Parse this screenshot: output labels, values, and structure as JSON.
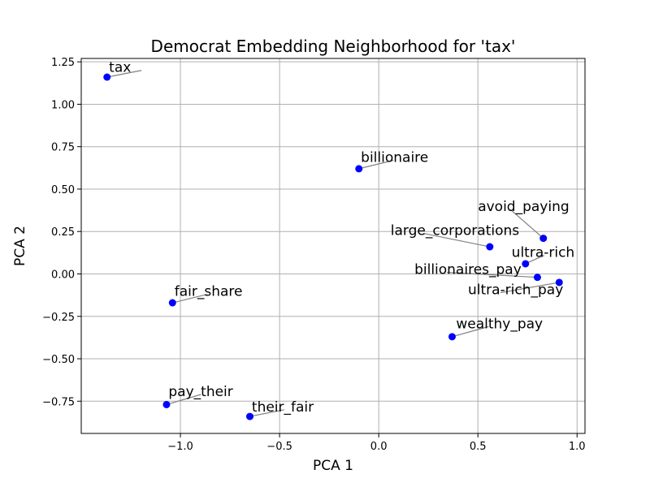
{
  "chart_data": {
    "type": "scatter",
    "title": "Democrat Embedding Neighborhood for 'tax'",
    "xlabel": "PCA 1",
    "ylabel": "PCA 2",
    "xlim": [
      -1.5,
      1.04
    ],
    "ylim": [
      -0.94,
      1.27
    ],
    "xticks": [
      -1.0,
      -0.5,
      0.0,
      0.5,
      1.0
    ],
    "xtick_labels": [
      "−1.0",
      "−0.5",
      "0.0",
      "0.5",
      "1.0"
    ],
    "yticks": [
      -0.75,
      -0.5,
      -0.25,
      0.0,
      0.25,
      0.5,
      0.75,
      1.0,
      1.25
    ],
    "ytick_labels": [
      "−0.75",
      "−0.50",
      "−0.25",
      "0.00",
      "0.25",
      "0.50",
      "0.75",
      "1.00",
      "1.25"
    ],
    "grid": true,
    "marker_color": "#0000ff",
    "points": [
      {
        "label": "tax",
        "x": -1.37,
        "y": 1.16,
        "label_x": -1.36,
        "label_y": 1.19
      },
      {
        "label": "billionaire",
        "x": -0.1,
        "y": 0.62,
        "label_x": -0.09,
        "label_y": 0.66
      },
      {
        "label": "avoid_paying",
        "x": 0.83,
        "y": 0.21,
        "label_x": 0.5,
        "label_y": 0.37
      },
      {
        "label": "large_corporations",
        "x": 0.56,
        "y": 0.16,
        "label_x": 0.06,
        "label_y": 0.23
      },
      {
        "label": "ultra-rich",
        "x": 0.74,
        "y": 0.06,
        "label_x": 0.67,
        "label_y": 0.1
      },
      {
        "label": "billionaires_pay",
        "x": 0.8,
        "y": -0.02,
        "label_x": 0.18,
        "label_y": -0.0
      },
      {
        "label": "ultra-rich_pay",
        "x": 0.91,
        "y": -0.05,
        "label_x": 0.45,
        "label_y": -0.12
      },
      {
        "label": "fair_share",
        "x": -1.04,
        "y": -0.17,
        "label_x": -1.03,
        "label_y": -0.13
      },
      {
        "label": "wealthy_pay",
        "x": 0.37,
        "y": -0.37,
        "label_x": 0.39,
        "label_y": -0.32
      },
      {
        "label": "pay_their",
        "x": -1.07,
        "y": -0.77,
        "label_x": -1.06,
        "label_y": -0.72
      },
      {
        "label": "their_fair",
        "x": -0.65,
        "y": -0.84,
        "label_x": -0.64,
        "label_y": -0.81
      }
    ]
  }
}
